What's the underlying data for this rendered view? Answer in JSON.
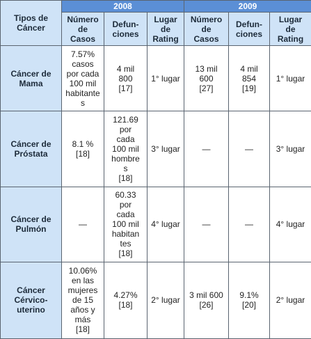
{
  "header": {
    "tipos": [
      "Tipos de",
      "Cáncer"
    ],
    "year_2008": "2008",
    "year_2009": "2009",
    "cols_2008": [
      [
        "Número",
        "de",
        "Casos"
      ],
      [
        "Defun-",
        "ciones"
      ],
      [
        "Lugar",
        "de",
        "Rating"
      ]
    ],
    "cols_2009": [
      [
        "Número",
        "de",
        "Casos"
      ],
      [
        "Defun-",
        "ciones"
      ],
      [
        "Lugar",
        "de",
        "Rating"
      ]
    ]
  },
  "rows": [
    {
      "type": [
        "Cáncer de",
        "Mama"
      ],
      "cells": [
        [
          "7.57%",
          "casos",
          "por cada",
          "100 mil",
          "habitante",
          "s"
        ],
        [
          "4 mil",
          "800",
          "[17]"
        ],
        [
          "1° lugar"
        ],
        [
          "13 mil",
          "600",
          "[27]"
        ],
        [
          "4 mil",
          "854",
          "[19]"
        ],
        [
          "1° lugar"
        ]
      ]
    },
    {
      "type": [
        "Cáncer de",
        "Próstata"
      ],
      "cells": [
        [
          "8.1 %",
          "[18]"
        ],
        [
          "121.69",
          "por",
          "cada",
          "100 mil",
          "hombre",
          "s",
          "[18]"
        ],
        [
          "3° lugar"
        ],
        [
          "—"
        ],
        [
          "—"
        ],
        [
          "3° lugar"
        ]
      ]
    },
    {
      "type": [
        "Cáncer de",
        "Pulmón"
      ],
      "cells": [
        [
          "—"
        ],
        [
          "60.33",
          "por",
          "cada",
          "100 mil",
          "habitan",
          "tes",
          "[18]"
        ],
        [
          "4° lugar"
        ],
        [
          "—"
        ],
        [
          "—"
        ],
        [
          "4° lugar"
        ]
      ]
    },
    {
      "type": [
        "Cáncer",
        "Cérvico-",
        "uterino"
      ],
      "cells": [
        [
          "10.06%",
          "en las",
          "mujeres",
          "de 15",
          "años y",
          "más",
          "[18]"
        ],
        [
          "4.27%",
          "[18]"
        ],
        [
          "2° lugar"
        ],
        [
          "3 mil 600",
          "[26]"
        ],
        [
          "9.1%",
          "[20]"
        ],
        [
          "2° lugar"
        ]
      ]
    }
  ]
}
